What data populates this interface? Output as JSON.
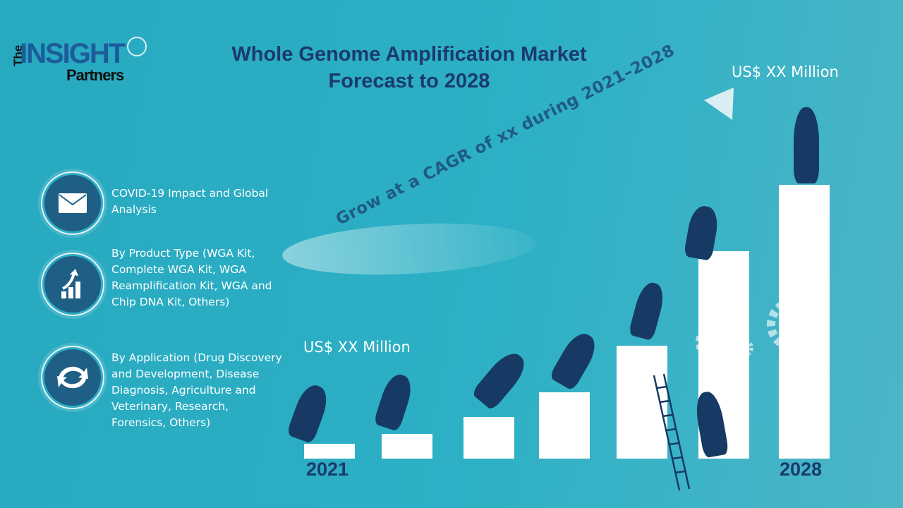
{
  "logo": {
    "the": "The",
    "insight": "INSIGHT",
    "partners": "Partners"
  },
  "title": {
    "line1": "Whole Genome Amplification Market",
    "line2": "Forecast to 2028"
  },
  "segments": [
    {
      "icon": "envelope-icon",
      "text": "COVID-19 Impact and Global Analysis"
    },
    {
      "icon": "growth-chart-icon",
      "text": "By Product Type (WGA Kit, Complete WGA Kit, WGA Reamplification Kit, WGA and Chip DNA Kit, Others)"
    },
    {
      "icon": "cycle-icon",
      "text": "By Application (Drug Discovery and Development, Disease Diagnosis, Agriculture and Veterinary, Research, Forensics, Others)"
    }
  ],
  "growth": {
    "cagr_text": "Grow at a CAGR of xx during 2021–2028",
    "start_value": "US$ XX Million",
    "end_value": "US$ XX Million",
    "start_year": "2021",
    "end_year": "2028"
  },
  "colors": {
    "background": "#2aaec4",
    "title": "#1b3a6b",
    "icon_circle": "#1f5f86"
  }
}
